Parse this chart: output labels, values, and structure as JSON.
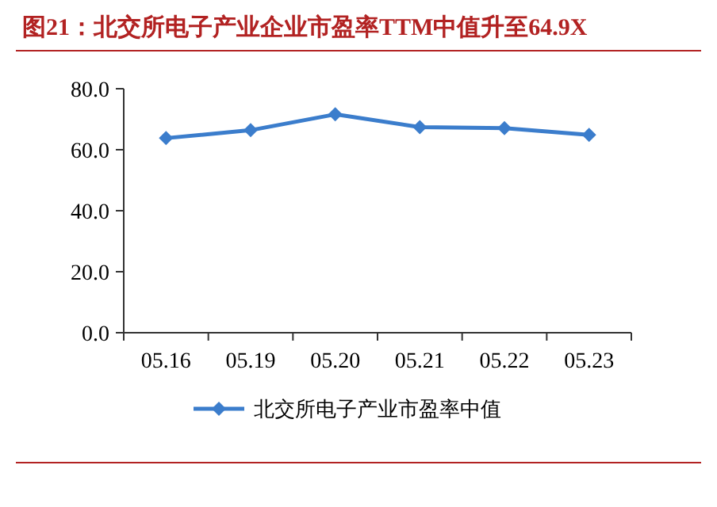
{
  "chart_data": {
    "type": "line",
    "title": "图21：北交所电子产业企业市盈率TTM中值升至64.9X",
    "categories": [
      "05.16",
      "05.19",
      "05.20",
      "05.21",
      "05.22",
      "05.23"
    ],
    "series": [
      {
        "name": "北交所电子产业市盈率中值",
        "color": "#3b7dcc",
        "values": [
          63.8,
          66.4,
          71.6,
          67.4,
          67.1,
          64.9
        ]
      }
    ],
    "ylim": [
      0,
      80
    ],
    "yticks": [
      {
        "value": 0,
        "label": "0.0"
      },
      {
        "value": 20,
        "label": "20.0"
      },
      {
        "value": 40,
        "label": "40.0"
      },
      {
        "value": 60,
        "label": "60.0"
      },
      {
        "value": 80,
        "label": "80.0"
      }
    ],
    "grid": false,
    "legend": "bottom",
    "marker": "diamond",
    "line_style": "solid"
  }
}
